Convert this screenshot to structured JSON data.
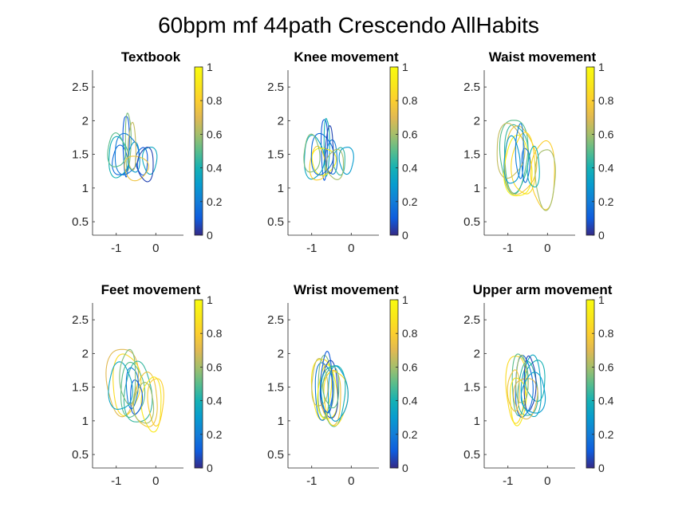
{
  "figure": {
    "title": "60bpm mf 44path Crescendo AllHabits"
  },
  "chart_data": [
    {
      "type": "line",
      "title": "Textbook",
      "xlim": [
        -1.6,
        0.7
      ],
      "ylim": [
        0.3,
        2.75
      ],
      "xticks": [
        -1,
        0
      ],
      "yticks": [
        0.5,
        1,
        1.5,
        2,
        2.5
      ],
      "colorbar": {
        "range": [
          0,
          1
        ],
        "ticks": [
          0,
          0.2,
          0.4,
          0.6,
          0.8,
          1
        ],
        "colormap": "parula"
      },
      "loops": [
        {
          "cx": -0.75,
          "cy": 1.65,
          "rx": 0.08,
          "ry": 0.45,
          "c": 0.1
        },
        {
          "cx": -0.7,
          "cy": 1.7,
          "rx": 0.07,
          "ry": 0.42,
          "c": 0.55
        },
        {
          "cx": -0.95,
          "cy": 1.45,
          "rx": 0.25,
          "ry": 0.3,
          "c": 0.4
        },
        {
          "cx": -0.9,
          "cy": 1.4,
          "rx": 0.2,
          "ry": 0.22,
          "c": 0.15
        },
        {
          "cx": -0.55,
          "cy": 1.45,
          "rx": 0.15,
          "ry": 0.22,
          "c": 0.3
        },
        {
          "cx": -0.35,
          "cy": 1.4,
          "rx": 0.15,
          "ry": 0.2,
          "c": 0.1
        },
        {
          "cx": -0.15,
          "cy": 1.42,
          "rx": 0.18,
          "ry": 0.2,
          "c": 0.35
        },
        {
          "cx": -0.5,
          "cy": 1.3,
          "rx": 0.3,
          "ry": 0.18,
          "c": 0.75
        },
        {
          "cx": -0.75,
          "cy": 1.5,
          "rx": 0.3,
          "ry": 0.3,
          "c": 0.2
        },
        {
          "cx": -1.0,
          "cy": 1.55,
          "rx": 0.22,
          "ry": 0.25,
          "c": 0.5
        },
        {
          "cx": -0.6,
          "cy": 1.6,
          "rx": 0.1,
          "ry": 0.35,
          "c": 0.65
        },
        {
          "cx": -0.25,
          "cy": 1.35,
          "rx": 0.2,
          "ry": 0.25,
          "c": 0.05
        }
      ]
    },
    {
      "type": "line",
      "title": "Knee movement",
      "xlim": [
        -1.6,
        0.7
      ],
      "ylim": [
        0.3,
        2.75
      ],
      "xticks": [
        -1,
        0
      ],
      "yticks": [
        0.5,
        1,
        1.5,
        2,
        2.5
      ],
      "colorbar": {
        "range": [
          0,
          1
        ],
        "ticks": [
          0,
          0.2,
          0.4,
          0.6,
          0.8,
          1
        ],
        "colormap": "parula"
      },
      "loops": [
        {
          "cx": -0.68,
          "cy": 1.6,
          "rx": 0.08,
          "ry": 0.45,
          "c": 0.1
        },
        {
          "cx": -0.62,
          "cy": 1.62,
          "rx": 0.07,
          "ry": 0.42,
          "c": 0.4
        },
        {
          "cx": -0.95,
          "cy": 1.45,
          "rx": 0.25,
          "ry": 0.32,
          "c": 0.35
        },
        {
          "cx": -0.85,
          "cy": 1.35,
          "rx": 0.2,
          "ry": 0.25,
          "c": 0.8
        },
        {
          "cx": -0.5,
          "cy": 1.45,
          "rx": 0.15,
          "ry": 0.25,
          "c": 0.2
        },
        {
          "cx": -0.3,
          "cy": 1.4,
          "rx": 0.15,
          "ry": 0.2,
          "c": 0.45
        },
        {
          "cx": -0.12,
          "cy": 1.42,
          "rx": 0.18,
          "ry": 0.2,
          "c": 0.3
        },
        {
          "cx": -0.7,
          "cy": 1.4,
          "rx": 0.3,
          "ry": 0.2,
          "c": 0.95
        },
        {
          "cx": -0.75,
          "cy": 1.5,
          "rx": 0.28,
          "ry": 0.3,
          "c": 0.15
        },
        {
          "cx": -1.0,
          "cy": 1.5,
          "rx": 0.2,
          "ry": 0.28,
          "c": 0.55
        },
        {
          "cx": -0.55,
          "cy": 1.55,
          "rx": 0.1,
          "ry": 0.35,
          "c": 0.05
        },
        {
          "cx": -0.4,
          "cy": 1.35,
          "rx": 0.22,
          "ry": 0.22,
          "c": 0.6
        }
      ]
    },
    {
      "type": "line",
      "title": "Waist movement",
      "xlim": [
        -1.6,
        0.7
      ],
      "ylim": [
        0.3,
        2.75
      ],
      "xticks": [
        -1,
        0
      ],
      "yticks": [
        0.5,
        1,
        1.5,
        2,
        2.5
      ],
      "colorbar": {
        "range": [
          0,
          1
        ],
        "ticks": [
          0,
          0.2,
          0.4,
          0.6,
          0.8,
          1
        ],
        "colormap": "parula"
      },
      "loops": [
        {
          "cx": -0.85,
          "cy": 1.5,
          "rx": 0.35,
          "ry": 0.55,
          "c": 0.5
        },
        {
          "cx": -0.8,
          "cy": 1.45,
          "rx": 0.3,
          "ry": 0.5,
          "c": 0.45
        },
        {
          "cx": -0.7,
          "cy": 1.4,
          "rx": 0.4,
          "ry": 0.5,
          "c": 0.75
        },
        {
          "cx": -0.75,
          "cy": 1.3,
          "rx": 0.35,
          "ry": 0.45,
          "c": 0.95
        },
        {
          "cx": -0.6,
          "cy": 1.35,
          "rx": 0.3,
          "ry": 0.45,
          "c": 0.85
        },
        {
          "cx": -0.1,
          "cy": 1.2,
          "rx": 0.3,
          "ry": 0.5,
          "c": 0.8
        },
        {
          "cx": -0.05,
          "cy": 1.15,
          "rx": 0.25,
          "ry": 0.45,
          "c": 0.6
        },
        {
          "cx": -0.55,
          "cy": 1.35,
          "rx": 0.1,
          "ry": 0.25,
          "c": 0.15
        },
        {
          "cx": -0.95,
          "cy": 1.55,
          "rx": 0.35,
          "ry": 0.4,
          "c": 0.65
        },
        {
          "cx": -0.9,
          "cy": 1.4,
          "rx": 0.2,
          "ry": 0.35,
          "c": 0.3
        },
        {
          "cx": -0.35,
          "cy": 1.3,
          "rx": 0.15,
          "ry": 0.3,
          "c": 0.4
        },
        {
          "cx": -0.7,
          "cy": 1.55,
          "rx": 0.1,
          "ry": 0.4,
          "c": 0.2
        }
      ]
    },
    {
      "type": "line",
      "title": "Feet movement",
      "xlim": [
        -1.6,
        0.7
      ],
      "ylim": [
        0.3,
        2.75
      ],
      "xticks": [
        -1,
        0
      ],
      "yticks": [
        0.5,
        1,
        1.5,
        2,
        2.5
      ],
      "colorbar": {
        "range": [
          0,
          1
        ],
        "ticks": [
          0,
          0.2,
          0.4,
          0.6,
          0.8,
          1
        ],
        "colormap": "parula"
      },
      "loops": [
        {
          "cx": -0.85,
          "cy": 1.6,
          "rx": 0.4,
          "ry": 0.5,
          "c": 0.7
        },
        {
          "cx": -0.75,
          "cy": 1.55,
          "rx": 0.35,
          "ry": 0.45,
          "c": 0.85
        },
        {
          "cx": -0.6,
          "cy": 1.45,
          "rx": 0.3,
          "ry": 0.4,
          "c": 0.5
        },
        {
          "cx": -0.45,
          "cy": 1.4,
          "rx": 0.35,
          "ry": 0.45,
          "c": 0.45
        },
        {
          "cx": -0.25,
          "cy": 1.3,
          "rx": 0.3,
          "ry": 0.4,
          "c": 0.75
        },
        {
          "cx": -0.1,
          "cy": 1.25,
          "rx": 0.25,
          "ry": 0.4,
          "c": 0.9
        },
        {
          "cx": 0.0,
          "cy": 1.3,
          "rx": 0.2,
          "ry": 0.35,
          "c": 0.8
        },
        {
          "cx": -0.6,
          "cy": 1.5,
          "rx": 0.15,
          "ry": 0.3,
          "c": 0.2
        },
        {
          "cx": -0.5,
          "cy": 1.35,
          "rx": 0.15,
          "ry": 0.25,
          "c": 0.1
        },
        {
          "cx": -0.9,
          "cy": 1.5,
          "rx": 0.3,
          "ry": 0.35,
          "c": 0.35
        },
        {
          "cx": -0.3,
          "cy": 1.25,
          "rx": 0.25,
          "ry": 0.3,
          "c": 0.6
        },
        {
          "cx": -0.7,
          "cy": 1.65,
          "rx": 0.2,
          "ry": 0.4,
          "c": 0.55
        }
      ]
    },
    {
      "type": "line",
      "title": "Wrist movement",
      "xlim": [
        -1.6,
        0.7
      ],
      "ylim": [
        0.3,
        2.75
      ],
      "xticks": [
        -1,
        0
      ],
      "yticks": [
        0.5,
        1,
        1.5,
        2,
        2.5
      ],
      "colorbar": {
        "range": [
          0,
          1
        ],
        "ticks": [
          0,
          0.2,
          0.4,
          0.6,
          0.8,
          1
        ],
        "colormap": "parula"
      },
      "loops": [
        {
          "cx": -0.75,
          "cy": 1.5,
          "rx": 0.25,
          "ry": 0.45,
          "c": 0.9
        },
        {
          "cx": -0.7,
          "cy": 1.45,
          "rx": 0.22,
          "ry": 0.42,
          "c": 0.2
        },
        {
          "cx": -0.65,
          "cy": 1.5,
          "rx": 0.2,
          "ry": 0.45,
          "c": 0.55
        },
        {
          "cx": -0.6,
          "cy": 1.4,
          "rx": 0.25,
          "ry": 0.4,
          "c": 0.98
        },
        {
          "cx": -0.55,
          "cy": 1.45,
          "rx": 0.22,
          "ry": 0.42,
          "c": 0.05
        },
        {
          "cx": -0.5,
          "cy": 1.35,
          "rx": 0.25,
          "ry": 0.4,
          "c": 0.75
        },
        {
          "cx": -0.45,
          "cy": 1.4,
          "rx": 0.3,
          "ry": 0.45,
          "c": 0.4
        },
        {
          "cx": -0.4,
          "cy": 1.35,
          "rx": 0.3,
          "ry": 0.4,
          "c": 0.85
        },
        {
          "cx": -0.35,
          "cy": 1.4,
          "rx": 0.25,
          "ry": 0.4,
          "c": 0.3
        },
        {
          "cx": -0.8,
          "cy": 1.55,
          "rx": 0.2,
          "ry": 0.35,
          "c": 0.65
        },
        {
          "cx": -0.62,
          "cy": 1.55,
          "rx": 0.15,
          "ry": 0.45,
          "c": 0.1
        },
        {
          "cx": -0.5,
          "cy": 1.5,
          "rx": 0.2,
          "ry": 0.3,
          "c": 0.5
        }
      ]
    },
    {
      "type": "line",
      "title": "Upper arm movement",
      "xlim": [
        -1.6,
        0.7
      ],
      "ylim": [
        0.3,
        2.75
      ],
      "xticks": [
        -1,
        0
      ],
      "yticks": [
        0.5,
        1,
        1.5,
        2,
        2.5
      ],
      "colorbar": {
        "range": [
          0,
          1
        ],
        "ticks": [
          0,
          0.2,
          0.4,
          0.6,
          0.8,
          1
        ],
        "colormap": "parula"
      },
      "loops": [
        {
          "cx": -0.8,
          "cy": 1.5,
          "rx": 0.25,
          "ry": 0.5,
          "c": 0.85
        },
        {
          "cx": -0.7,
          "cy": 1.55,
          "rx": 0.2,
          "ry": 0.45,
          "c": 0.5
        },
        {
          "cx": -0.6,
          "cy": 1.5,
          "rx": 0.22,
          "ry": 0.45,
          "c": 0.15
        },
        {
          "cx": -0.5,
          "cy": 1.45,
          "rx": 0.25,
          "ry": 0.4,
          "c": 0.45
        },
        {
          "cx": -0.4,
          "cy": 1.5,
          "rx": 0.25,
          "ry": 0.45,
          "c": 0.35
        },
        {
          "cx": -0.3,
          "cy": 1.6,
          "rx": 0.25,
          "ry": 0.3,
          "c": 0.4
        },
        {
          "cx": -0.55,
          "cy": 1.35,
          "rx": 0.3,
          "ry": 0.3,
          "c": 0.7
        },
        {
          "cx": -0.75,
          "cy": 1.3,
          "rx": 0.2,
          "ry": 0.35,
          "c": 0.9
        },
        {
          "cx": -0.45,
          "cy": 1.55,
          "rx": 0.15,
          "ry": 0.4,
          "c": 0.05
        },
        {
          "cx": -0.65,
          "cy": 1.6,
          "rx": 0.15,
          "ry": 0.35,
          "c": 0.6
        },
        {
          "cx": -0.35,
          "cy": 1.4,
          "rx": 0.3,
          "ry": 0.3,
          "c": 0.3
        },
        {
          "cx": -0.85,
          "cy": 1.45,
          "rx": 0.15,
          "ry": 0.3,
          "c": 0.75
        }
      ]
    }
  ]
}
